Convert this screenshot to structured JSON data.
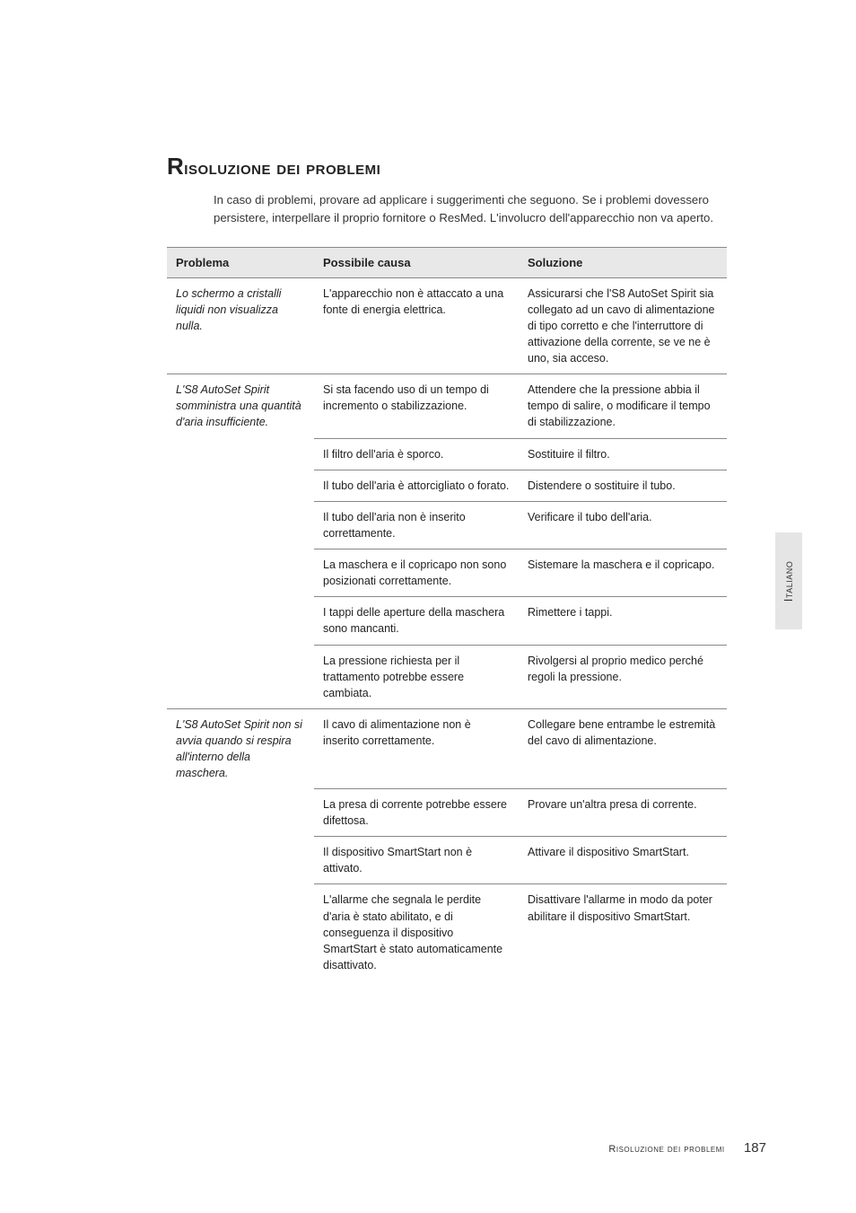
{
  "heading": "Risoluzione dei problemi",
  "intro": "In caso di problemi, provare ad applicare i suggerimenti che seguono. Se i problemi dovessero persistere, interpellare il proprio fornitore o ResMed. L'involucro dell'apparecchio non va aperto.",
  "columns": {
    "c1": "Problema",
    "c2": "Possibile causa",
    "c3": "Soluzione"
  },
  "groups": [
    {
      "problem": "Lo schermo a cristalli liquidi non visualizza nulla.",
      "rows": [
        {
          "cause": "L'apparecchio non è attaccato a una fonte di energia elettrica.",
          "solution": "Assicurarsi che l'S8 AutoSet Spirit sia collegato ad un cavo di alimentazione di tipo corretto e che l'interruttore di attivazione della corrente, se ve ne è uno, sia acceso."
        }
      ]
    },
    {
      "problem": "L'S8 AutoSet Spirit somministra una quantità d'aria insufficiente.",
      "rows": [
        {
          "cause": "Si sta facendo uso di un tempo di incremento o stabilizzazione.",
          "solution": "Attendere che la pressione abbia il tempo di salire, o modificare il tempo di stabilizzazione."
        },
        {
          "cause": "Il filtro dell'aria è sporco.",
          "solution": "Sostituire il filtro."
        },
        {
          "cause": "Il tubo dell'aria è attorcigliato o forato.",
          "solution": "Distendere o sostituire il tubo."
        },
        {
          "cause": "Il tubo dell'aria non è inserito correttamente.",
          "solution": "Verificare il tubo dell'aria."
        },
        {
          "cause": "La maschera e il copricapo non sono posizionati correttamente.",
          "solution": "Sistemare la maschera e il copricapo."
        },
        {
          "cause": "I tappi delle aperture della maschera sono mancanti.",
          "solution": "Rimettere i tappi."
        },
        {
          "cause": "La pressione richiesta per il trattamento potrebbe essere cambiata.",
          "solution": "Rivolgersi al proprio medico perché regoli la pressione."
        }
      ]
    },
    {
      "problem": "L'S8 AutoSet Spirit non si avvia quando si respira all'interno della maschera.",
      "rows": [
        {
          "cause": "Il cavo di alimentazione non è inserito correttamente.",
          "solution": "Collegare bene entrambe le estremità del cavo di alimentazione."
        },
        {
          "cause": "La presa di corrente potrebbe essere difettosa.",
          "solution": "Provare un'altra presa di corrente."
        },
        {
          "cause": "Il dispositivo SmartStart non è attivato.",
          "solution": "Attivare il dispositivo SmartStart."
        },
        {
          "cause": "L'allarme che segnala le perdite d'aria è stato abilitato, e di conseguenza il dispositivo SmartStart è stato automaticamente disattivato.",
          "solution": "Disattivare l'allarme in modo da poter abilitare il dispositivo SmartStart."
        }
      ]
    }
  ],
  "sideTab": "Italiano",
  "footer": {
    "section": "Risoluzione dei problemi",
    "page": "187"
  },
  "style": {
    "page_bg": "#ffffff",
    "header_bg": "#e8e8e8",
    "border_color": "#888888",
    "tab_bg": "#e5e5e5",
    "body_font_size_pt": 10,
    "heading_font_size_pt": 16
  }
}
